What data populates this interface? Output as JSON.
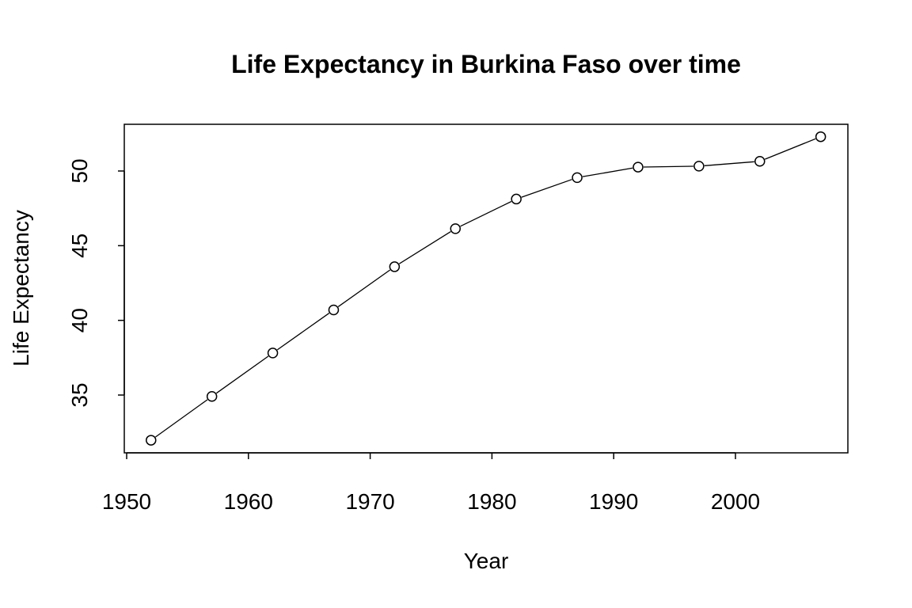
{
  "chart_data": {
    "type": "line",
    "title": "Life Expectancy in Burkina Faso over time",
    "xlabel": "Year",
    "ylabel": "Life Expectancy",
    "x": [
      1952,
      1957,
      1962,
      1967,
      1972,
      1977,
      1982,
      1987,
      1992,
      1997,
      2002,
      2007
    ],
    "series": [
      {
        "name": "Life Expectancy",
        "values": [
          31.975,
          34.906,
          37.814,
          40.697,
          43.591,
          46.137,
          48.122,
          49.557,
          50.26,
          50.324,
          50.65,
          52.295
        ]
      }
    ],
    "xticks": [
      1950,
      1960,
      1970,
      1980,
      1990,
      2000
    ],
    "yticks": [
      35,
      40,
      45,
      50
    ],
    "xlim": [
      1949.8,
      2009.2
    ],
    "ylim": [
      31.2,
      53.2
    ],
    "grid": false,
    "marker": "open-circle",
    "color": "#000000"
  }
}
